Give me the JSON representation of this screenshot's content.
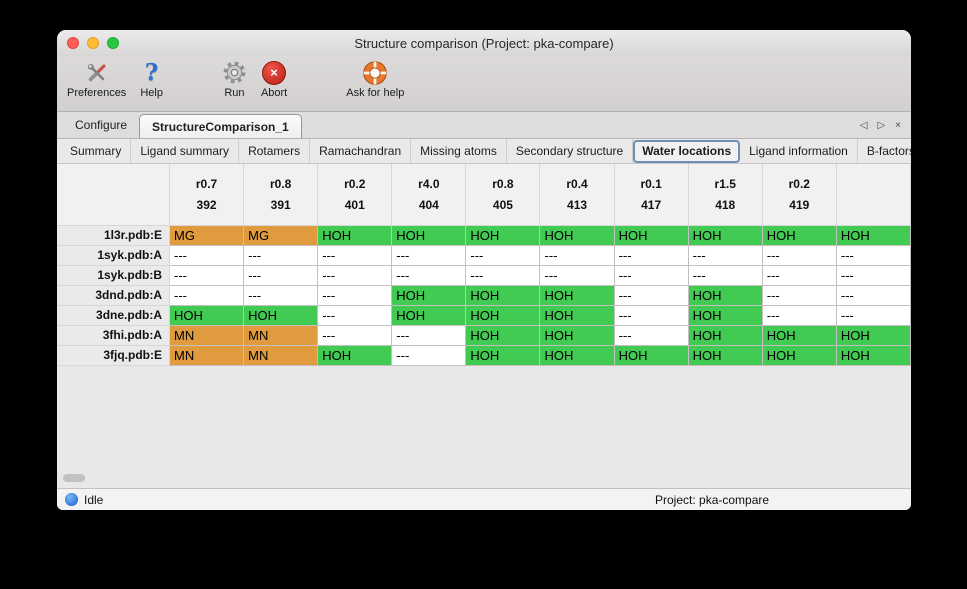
{
  "colors": {
    "metal_cell": "#df9b3d",
    "water_cell": "#42cb52",
    "status_dot": "#1565d8",
    "selected_subtab_border": "#6e8fb4",
    "traffic_close": "#ff5f57",
    "traffic_minimize": "#febc2e",
    "traffic_zoom": "#28c840"
  },
  "window": {
    "title": "Structure comparison (Project: pka-compare)"
  },
  "toolbar": {
    "items": [
      {
        "label": "Preferences",
        "icon": "preferences-icon"
      },
      {
        "label": "Help",
        "icon": "help-icon"
      },
      {
        "label": "Run",
        "icon": "run-icon"
      },
      {
        "label": "Abort",
        "icon": "abort-icon"
      },
      {
        "label": "Ask for help",
        "icon": "lifebuoy-icon"
      }
    ]
  },
  "tab_bar": {
    "tabs": [
      {
        "label": "Configure",
        "active": false
      },
      {
        "label": "StructureComparison_1",
        "active": true
      }
    ],
    "controls": [
      "scroll-left-icon",
      "scroll-right-icon",
      "close-icon"
    ]
  },
  "subtab_bar": {
    "tabs": [
      "Summary",
      "Ligand summary",
      "Rotamers",
      "Ramachandran",
      "Missing atoms",
      "Secondary structure",
      "Water locations",
      "Ligand information",
      "B-factors"
    ],
    "selected": "Water locations",
    "controls": [
      "scroll-left-icon",
      "scroll-right-icon"
    ]
  },
  "table": {
    "columns": [
      {
        "line1": "r0.7",
        "line2": "392"
      },
      {
        "line1": "r0.8",
        "line2": "391"
      },
      {
        "line1": "r0.2",
        "line2": "401"
      },
      {
        "line1": "r4.0",
        "line2": "404"
      },
      {
        "line1": "r0.8",
        "line2": "405"
      },
      {
        "line1": "r0.4",
        "line2": "413"
      },
      {
        "line1": "r0.1",
        "line2": "417"
      },
      {
        "line1": "r1.5",
        "line2": "418"
      },
      {
        "line1": "r0.2",
        "line2": "419"
      },
      {
        "line1": "",
        "line2": ""
      }
    ],
    "rows": [
      {
        "label": "1l3r.pdb:E",
        "cells": [
          {
            "text": "MG",
            "type": "metal"
          },
          {
            "text": "MG",
            "type": "metal"
          },
          {
            "text": "HOH",
            "type": "water"
          },
          {
            "text": "HOH",
            "type": "water"
          },
          {
            "text": "HOH",
            "type": "water"
          },
          {
            "text": "HOH",
            "type": "water"
          },
          {
            "text": "HOH",
            "type": "water"
          },
          {
            "text": "HOH",
            "type": "water"
          },
          {
            "text": "HOH",
            "type": "water"
          },
          {
            "text": "HOH",
            "type": "water"
          }
        ]
      },
      {
        "label": "1syk.pdb:A",
        "cells": [
          {
            "text": "---",
            "type": "empty"
          },
          {
            "text": "---",
            "type": "empty"
          },
          {
            "text": "---",
            "type": "empty"
          },
          {
            "text": "---",
            "type": "empty"
          },
          {
            "text": "---",
            "type": "empty"
          },
          {
            "text": "---",
            "type": "empty"
          },
          {
            "text": "---",
            "type": "empty"
          },
          {
            "text": "---",
            "type": "empty"
          },
          {
            "text": "---",
            "type": "empty"
          },
          {
            "text": "---",
            "type": "empty"
          }
        ]
      },
      {
        "label": "1syk.pdb:B",
        "cells": [
          {
            "text": "---",
            "type": "empty"
          },
          {
            "text": "---",
            "type": "empty"
          },
          {
            "text": "---",
            "type": "empty"
          },
          {
            "text": "---",
            "type": "empty"
          },
          {
            "text": "---",
            "type": "empty"
          },
          {
            "text": "---",
            "type": "empty"
          },
          {
            "text": "---",
            "type": "empty"
          },
          {
            "text": "---",
            "type": "empty"
          },
          {
            "text": "---",
            "type": "empty"
          },
          {
            "text": "---",
            "type": "empty"
          }
        ]
      },
      {
        "label": "3dnd.pdb:A",
        "cells": [
          {
            "text": "---",
            "type": "empty"
          },
          {
            "text": "---",
            "type": "empty"
          },
          {
            "text": "---",
            "type": "empty"
          },
          {
            "text": "HOH",
            "type": "water"
          },
          {
            "text": "HOH",
            "type": "water"
          },
          {
            "text": "HOH",
            "type": "water"
          },
          {
            "text": "---",
            "type": "empty"
          },
          {
            "text": "HOH",
            "type": "water"
          },
          {
            "text": "---",
            "type": "empty"
          },
          {
            "text": "---",
            "type": "empty"
          }
        ]
      },
      {
        "label": "3dne.pdb:A",
        "cells": [
          {
            "text": "HOH",
            "type": "water"
          },
          {
            "text": "HOH",
            "type": "water"
          },
          {
            "text": "---",
            "type": "empty"
          },
          {
            "text": "HOH",
            "type": "water"
          },
          {
            "text": "HOH",
            "type": "water"
          },
          {
            "text": "HOH",
            "type": "water"
          },
          {
            "text": "---",
            "type": "empty"
          },
          {
            "text": "HOH",
            "type": "water"
          },
          {
            "text": "---",
            "type": "empty"
          },
          {
            "text": "---",
            "type": "empty"
          }
        ]
      },
      {
        "label": "3fhi.pdb:A",
        "cells": [
          {
            "text": "MN",
            "type": "metal"
          },
          {
            "text": "MN",
            "type": "metal"
          },
          {
            "text": "---",
            "type": "empty"
          },
          {
            "text": "---",
            "type": "empty"
          },
          {
            "text": "HOH",
            "type": "water"
          },
          {
            "text": "HOH",
            "type": "water"
          },
          {
            "text": "---",
            "type": "empty"
          },
          {
            "text": "HOH",
            "type": "water"
          },
          {
            "text": "HOH",
            "type": "water"
          },
          {
            "text": "HOH",
            "type": "water"
          }
        ]
      },
      {
        "label": "3fjq.pdb:E",
        "cells": [
          {
            "text": "MN",
            "type": "metal"
          },
          {
            "text": "MN",
            "type": "metal"
          },
          {
            "text": "HOH",
            "type": "water"
          },
          {
            "text": "---",
            "type": "empty"
          },
          {
            "text": "HOH",
            "type": "water"
          },
          {
            "text": "HOH",
            "type": "water"
          },
          {
            "text": "HOH",
            "type": "water"
          },
          {
            "text": "HOH",
            "type": "water"
          },
          {
            "text": "HOH",
            "type": "water"
          },
          {
            "text": "HOH",
            "type": "water"
          }
        ]
      }
    ]
  },
  "status_bar": {
    "status": "Idle",
    "project": "Project: pka-compare"
  }
}
